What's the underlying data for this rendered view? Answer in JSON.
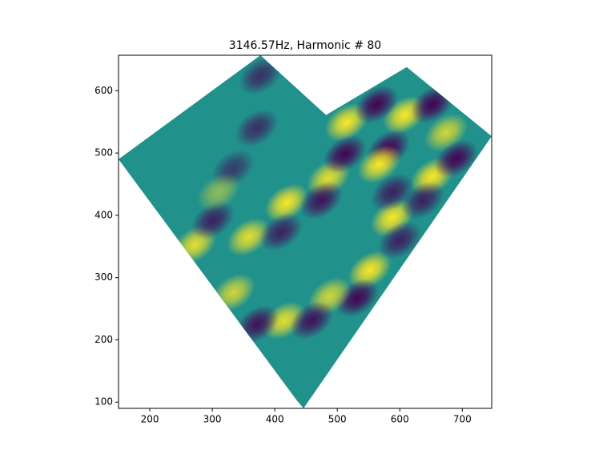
{
  "chart_data": {
    "type": "contour",
    "title": "3146.57Hz, Harmonic # 80",
    "xlim": [
      150,
      747
    ],
    "ylim": [
      90,
      657
    ],
    "xticks": [
      200,
      300,
      400,
      500,
      600,
      700
    ],
    "yticks": [
      100,
      200,
      300,
      400,
      500,
      600
    ],
    "colors": [
      "#440154",
      "#21918c",
      "#fde725"
    ],
    "boundary": {
      "x": [
        150,
        377,
        482,
        611,
        747,
        446,
        435
      ],
      "y": [
        490,
        657,
        561,
        638,
        527,
        90,
        103
      ]
    },
    "peaks": {
      "x": [
        515,
        608,
        652,
        563,
        582,
        567,
        652,
        674,
        690,
        588,
        552,
        532,
        419,
        486,
        512,
        474,
        358,
        272,
        301,
        410,
        334,
        415,
        488,
        372,
        459,
        377,
        371,
        333,
        310,
        588,
        637,
        600
      ],
      "y": [
        549,
        561,
        578,
        578,
        507,
        482,
        462,
        533,
        491,
        396,
        312,
        267,
        420,
        460,
        498,
        424,
        365,
        353,
        392,
        373,
        276,
        231,
        270,
        225,
        231,
        624,
        540,
        475,
        437,
        437,
        424,
        360
      ],
      "z": [
        1,
        1,
        -1,
        -1,
        -1,
        1,
        1,
        0.8,
        -1,
        1,
        1,
        -1,
        1,
        0.9,
        -1,
        -0.9,
        0.9,
        0.9,
        -0.8,
        -0.8,
        0.8,
        0.9,
        0.8,
        -0.9,
        -0.9,
        -0.7,
        -0.7,
        -0.6,
        0.5,
        -0.8,
        -0.8,
        -0.8
      ]
    }
  }
}
